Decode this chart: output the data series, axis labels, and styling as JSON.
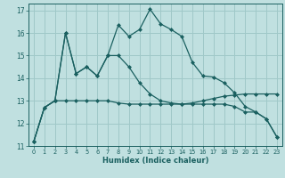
{
  "xlabel": "Humidex (Indice chaleur)",
  "background_color": "#c0e0e0",
  "grid_color": "#a0c8c8",
  "line_color": "#1a6060",
  "xlim": [
    -0.5,
    23.5
  ],
  "ylim": [
    11,
    17.3
  ],
  "yticks": [
    11,
    12,
    13,
    14,
    15,
    16,
    17
  ],
  "xticks": [
    0,
    1,
    2,
    3,
    4,
    5,
    6,
    7,
    8,
    9,
    10,
    11,
    12,
    13,
    14,
    15,
    16,
    17,
    18,
    19,
    20,
    21,
    22,
    23
  ],
  "line1_x": [
    0,
    1,
    2,
    3,
    4,
    5,
    6,
    7,
    8,
    9,
    10,
    11,
    12,
    13,
    14,
    15,
    16,
    17,
    18,
    19,
    20,
    21,
    22,
    23
  ],
  "line1_y": [
    11.2,
    12.7,
    13.0,
    16.0,
    14.2,
    14.5,
    14.1,
    15.0,
    16.35,
    15.85,
    16.15,
    17.05,
    16.4,
    16.15,
    15.85,
    14.7,
    14.1,
    14.05,
    13.8,
    13.35,
    12.75,
    12.5,
    12.2,
    11.4
  ],
  "line2_x": [
    0,
    1,
    2,
    3,
    4,
    5,
    6,
    7,
    8,
    9,
    10,
    11,
    12,
    13,
    14,
    15,
    16,
    17,
    18,
    19,
    20,
    21,
    22,
    23
  ],
  "line2_y": [
    11.2,
    12.7,
    13.0,
    13.0,
    13.0,
    13.0,
    13.0,
    13.0,
    12.9,
    12.85,
    12.85,
    12.85,
    12.85,
    12.85,
    12.85,
    12.9,
    13.0,
    13.1,
    13.2,
    13.25,
    13.3,
    13.3,
    13.3,
    13.3
  ],
  "line3_x": [
    0,
    1,
    2,
    3,
    4,
    5,
    6,
    7,
    8,
    9,
    10,
    11,
    12,
    13,
    14,
    15,
    16,
    17,
    18,
    19,
    20,
    21,
    22,
    23
  ],
  "line3_y": [
    11.2,
    12.7,
    13.0,
    16.0,
    14.2,
    14.5,
    14.1,
    15.0,
    15.0,
    14.5,
    13.8,
    13.3,
    13.0,
    12.9,
    12.85,
    12.85,
    12.85,
    12.85,
    12.85,
    12.75,
    12.5,
    12.5,
    12.2,
    11.4
  ]
}
